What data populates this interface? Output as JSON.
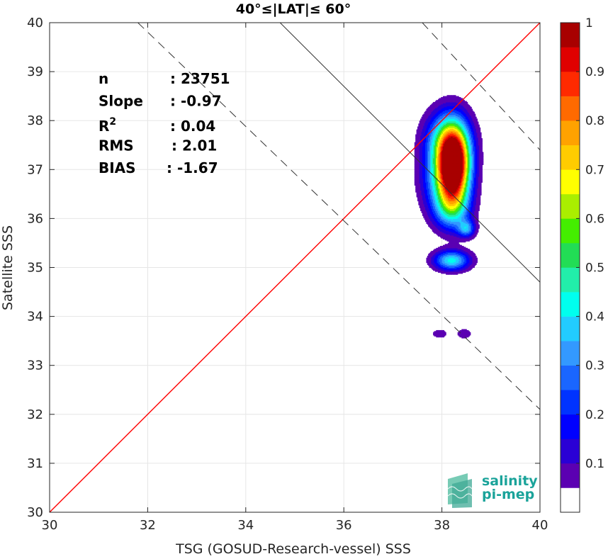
{
  "chart_data": {
    "type": "heatmap",
    "title": "40°≤|LAT|≤ 60°",
    "xlabel": "TSG (GOSUD-Research-vessel) SSS",
    "ylabel": "Satellite SSS",
    "xlim": [
      30,
      40
    ],
    "ylim": [
      30,
      40
    ],
    "xticks": [
      30,
      32,
      34,
      36,
      38,
      40
    ],
    "yticks": [
      30,
      31,
      32,
      33,
      34,
      35,
      36,
      37,
      38,
      39,
      40
    ],
    "grid": true,
    "stats": [
      {
        "label": "n",
        "value": ": 23751"
      },
      {
        "label": "Slope",
        "value": ": -0.97"
      },
      {
        "label": "R",
        "sup": "2",
        "value": ": 0.04"
      },
      {
        "label": "RMS",
        "value": ": 2.01"
      },
      {
        "label": "BIAS",
        "value": ": -1.67"
      }
    ],
    "reference_lines": [
      {
        "name": "1:1",
        "color": "#ff0000",
        "style": "solid",
        "points": [
          [
            30,
            30
          ],
          [
            40,
            40
          ]
        ]
      },
      {
        "name": "fit",
        "color": "#333333",
        "style": "solid",
        "points": [
          [
            34.7,
            40
          ],
          [
            40,
            34.7
          ]
        ]
      },
      {
        "name": "fit+rms",
        "color": "#333333",
        "style": "dashed",
        "points": [
          [
            37.6,
            40
          ],
          [
            40,
            37.4
          ]
        ]
      },
      {
        "name": "fit-rms",
        "color": "#333333",
        "style": "dashed",
        "points": [
          [
            31.8,
            40
          ],
          [
            40,
            32.1
          ]
        ]
      }
    ],
    "density_peaks": [
      {
        "x": 38.25,
        "y": 37.1,
        "sx": 0.22,
        "sy": 0.52,
        "a": 1.0
      },
      {
        "x": 38.05,
        "y": 36.8,
        "sx": 0.3,
        "sy": 0.45,
        "a": 0.35
      },
      {
        "x": 38.1,
        "y": 37.6,
        "sx": 0.3,
        "sy": 0.4,
        "a": 0.4
      },
      {
        "x": 38.2,
        "y": 36.2,
        "sx": 0.25,
        "sy": 0.3,
        "a": 0.3
      },
      {
        "x": 38.5,
        "y": 35.8,
        "sx": 0.12,
        "sy": 0.12,
        "a": 0.3
      },
      {
        "x": 38.2,
        "y": 35.15,
        "sx": 0.25,
        "sy": 0.14,
        "a": 0.42
      },
      {
        "x": 37.95,
        "y": 33.65,
        "sx": 0.12,
        "sy": 0.07,
        "a": 0.09
      },
      {
        "x": 38.45,
        "y": 33.65,
        "sx": 0.12,
        "sy": 0.08,
        "a": 0.09
      }
    ],
    "colorbar": {
      "ticks": [
        0.1,
        0.2,
        0.3,
        0.4,
        0.5,
        0.6,
        0.7,
        0.8,
        0.9,
        1
      ],
      "tick_labels": [
        "0.1",
        "0.2",
        "0.3",
        "0.4",
        "0.5",
        "0.6",
        "0.7",
        "0.8",
        "0.9",
        "1"
      ],
      "levels": 19,
      "colors": [
        "#ffffff",
        "#5b00b2",
        "#2a00d5",
        "#0000ff",
        "#0033ff",
        "#1a66ff",
        "#3399ff",
        "#22ccff",
        "#00ffee",
        "#22eeaa",
        "#22dd55",
        "#44ee00",
        "#aaee00",
        "#ffff00",
        "#ffcc00",
        "#ffa200",
        "#ff6a00",
        "#ff2a00",
        "#e00000",
        "#a80000"
      ]
    }
  },
  "logo": {
    "line1": "salinity",
    "line2": "pi-mep"
  }
}
